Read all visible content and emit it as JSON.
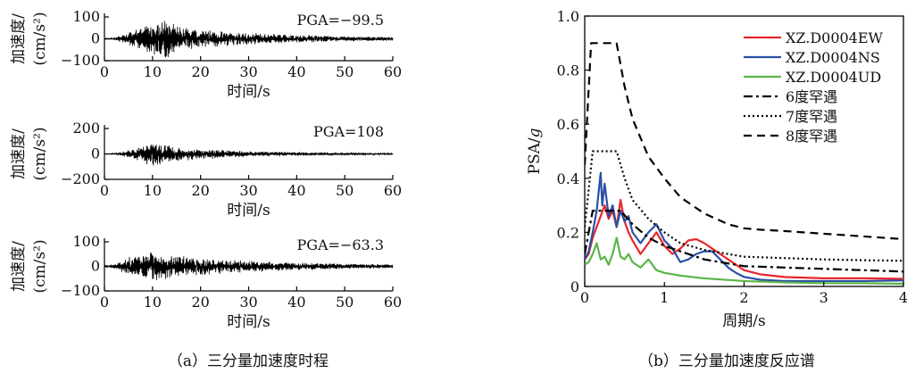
{
  "chart_data": [
    {
      "type": "line",
      "id": "ew",
      "title": "",
      "pga_label": "PGA=−99.5",
      "ylabel_line1": "加速度/",
      "ylabel_line2": "(cm/s²)",
      "xlabel": "时间/s",
      "xlim": [
        0,
        60
      ],
      "ylim": [
        -100,
        100
      ],
      "xticks": [
        0,
        10,
        20,
        30,
        40,
        50,
        60
      ],
      "yticks": [
        -100,
        0,
        100
      ],
      "ytick_labels": [
        "−100",
        "0",
        "100"
      ],
      "xtick_labels": [
        "0",
        "10",
        "20",
        "30",
        "40",
        "50",
        "60"
      ],
      "envelope": {
        "t": [
          0,
          2,
          5,
          8,
          10,
          12,
          13,
          15,
          20,
          25,
          30,
          40,
          50,
          60
        ],
        "amp": [
          2,
          5,
          30,
          60,
          70,
          85,
          99.5,
          60,
          45,
          35,
          28,
          18,
          12,
          8
        ]
      },
      "line_color": "#000000"
    },
    {
      "type": "line",
      "id": "ns",
      "title": "",
      "pga_label": "PGA=108",
      "ylabel_line1": "加速度/",
      "ylabel_line2": "(cm/s²)",
      "xlabel": "时间/s",
      "xlim": [
        0,
        60
      ],
      "ylim": [
        -200,
        200
      ],
      "xticks": [
        0,
        10,
        20,
        30,
        40,
        50,
        60
      ],
      "yticks": [
        -200,
        0,
        200
      ],
      "ytick_labels": [
        "−200",
        "0",
        "200"
      ],
      "xtick_labels": [
        "0",
        "10",
        "20",
        "30",
        "40",
        "50",
        "60"
      ],
      "envelope": {
        "t": [
          0,
          2,
          5,
          8,
          10,
          12,
          15,
          20,
          25,
          30,
          40,
          50,
          60
        ],
        "amp": [
          2,
          5,
          30,
          70,
          108,
          80,
          60,
          45,
          30,
          22,
          14,
          9,
          6
        ]
      },
      "line_color": "#000000"
    },
    {
      "type": "line",
      "id": "ud",
      "title": "",
      "pga_label": "PGA=−63.3",
      "ylabel_line1": "加速度/",
      "ylabel_line2": "(cm/s²)",
      "xlabel": "时间/s",
      "xlim": [
        0,
        60
      ],
      "ylim": [
        -100,
        100
      ],
      "xticks": [
        0,
        10,
        20,
        30,
        40,
        50,
        60
      ],
      "yticks": [
        -100,
        0,
        100
      ],
      "ytick_labels": [
        "−100",
        "0",
        "100"
      ],
      "xtick_labels": [
        "0",
        "10",
        "20",
        "30",
        "40",
        "50",
        "60"
      ],
      "envelope": {
        "t": [
          0,
          2,
          5,
          8,
          10,
          12,
          15,
          20,
          25,
          30,
          40,
          50,
          60
        ],
        "amp": [
          3,
          8,
          40,
          55,
          63.3,
          55,
          45,
          38,
          30,
          24,
          16,
          11,
          8
        ]
      },
      "line_color": "#000000"
    },
    {
      "type": "line",
      "id": "spectrum",
      "title": "",
      "xlabel": "周期/s",
      "ylabel_main": "PSA/",
      "ylabel_italic": "g",
      "xlim": [
        0,
        4
      ],
      "ylim": [
        0,
        1.0
      ],
      "xticks": [
        0,
        1,
        2,
        3,
        4
      ],
      "xtick_labels": [
        "0",
        "1",
        "2",
        "3",
        "4"
      ],
      "yticks": [
        0,
        0.2,
        0.4,
        0.6,
        0.8,
        1.0
      ],
      "ytick_labels": [
        "0",
        "0.2",
        "0.4",
        "0.6",
        "0.8",
        "1.0"
      ],
      "legend_position": "top-right",
      "series": [
        {
          "name": "XZ.D0004EW",
          "color": "#e8262b",
          "dash": "",
          "width": 2.2,
          "x": [
            0,
            0.05,
            0.1,
            0.15,
            0.2,
            0.25,
            0.3,
            0.35,
            0.4,
            0.45,
            0.5,
            0.55,
            0.6,
            0.7,
            0.8,
            0.9,
            1.0,
            1.1,
            1.2,
            1.3,
            1.4,
            1.5,
            1.6,
            1.7,
            1.8,
            1.9,
            2.0,
            2.2,
            2.5,
            3.0,
            3.5,
            4.0
          ],
          "y": [
            0.1,
            0.12,
            0.18,
            0.22,
            0.26,
            0.3,
            0.25,
            0.28,
            0.22,
            0.32,
            0.24,
            0.2,
            0.17,
            0.12,
            0.16,
            0.2,
            0.15,
            0.12,
            0.14,
            0.17,
            0.175,
            0.16,
            0.14,
            0.12,
            0.1,
            0.08,
            0.06,
            0.045,
            0.035,
            0.03,
            0.03,
            0.028
          ]
        },
        {
          "name": "XZ.D0004NS",
          "color": "#2a4fa6",
          "dash": "",
          "width": 2.2,
          "x": [
            0,
            0.05,
            0.1,
            0.15,
            0.2,
            0.22,
            0.25,
            0.3,
            0.35,
            0.4,
            0.45,
            0.5,
            0.55,
            0.6,
            0.7,
            0.8,
            0.9,
            1.0,
            1.1,
            1.2,
            1.3,
            1.4,
            1.5,
            1.6,
            1.7,
            1.8,
            1.9,
            2.0,
            2.2,
            2.5,
            3.0,
            3.5,
            4.0
          ],
          "y": [
            0.1,
            0.13,
            0.2,
            0.28,
            0.42,
            0.3,
            0.38,
            0.26,
            0.3,
            0.22,
            0.28,
            0.24,
            0.26,
            0.2,
            0.16,
            0.2,
            0.23,
            0.17,
            0.14,
            0.09,
            0.1,
            0.12,
            0.13,
            0.13,
            0.1,
            0.07,
            0.05,
            0.035,
            0.025,
            0.02,
            0.02,
            0.02,
            0.022
          ]
        },
        {
          "name": "XZ.D0004UD",
          "color": "#5bb547",
          "dash": "",
          "width": 2.2,
          "x": [
            0,
            0.05,
            0.1,
            0.15,
            0.2,
            0.25,
            0.3,
            0.35,
            0.4,
            0.45,
            0.5,
            0.55,
            0.6,
            0.7,
            0.8,
            0.9,
            1.0,
            1.2,
            1.5,
            2.0,
            2.5,
            3.0,
            3.5,
            4.0
          ],
          "y": [
            0.08,
            0.09,
            0.12,
            0.16,
            0.1,
            0.11,
            0.08,
            0.12,
            0.18,
            0.11,
            0.1,
            0.12,
            0.09,
            0.07,
            0.1,
            0.06,
            0.05,
            0.04,
            0.03,
            0.02,
            0.015,
            0.012,
            0.012,
            0.01
          ]
        },
        {
          "name": "6度罕遇",
          "color": "#000000",
          "dash": "10 4 3 4",
          "width": 2.2,
          "x": [
            0,
            0.1,
            0.45,
            0.6,
            0.8,
            1.0,
            1.2,
            1.5,
            2.0,
            2.5,
            3.0,
            3.5,
            4.0
          ],
          "y": [
            0.12,
            0.28,
            0.28,
            0.23,
            0.18,
            0.15,
            0.13,
            0.1,
            0.075,
            0.07,
            0.065,
            0.06,
            0.055
          ]
        },
        {
          "name": "7度罕遇",
          "color": "#000000",
          "dash": "2 3",
          "width": 2.2,
          "x": [
            0,
            0.1,
            0.4,
            0.5,
            0.6,
            0.8,
            1.0,
            1.2,
            1.5,
            1.8,
            2.0,
            2.5,
            3.0,
            3.5,
            4.0
          ],
          "y": [
            0.22,
            0.5,
            0.5,
            0.4,
            0.32,
            0.25,
            0.2,
            0.16,
            0.135,
            0.12,
            0.11,
            0.105,
            0.1,
            0.097,
            0.095
          ]
        },
        {
          "name": "8度罕遇",
          "color": "#000000",
          "dash": "9 6",
          "width": 2.2,
          "x": [
            0,
            0.08,
            0.4,
            0.5,
            0.6,
            0.8,
            1.0,
            1.2,
            1.5,
            1.8,
            2.0,
            2.2,
            2.5,
            3.0,
            3.5,
            4.0
          ],
          "y": [
            0.45,
            0.9,
            0.9,
            0.74,
            0.62,
            0.48,
            0.4,
            0.33,
            0.27,
            0.23,
            0.215,
            0.21,
            0.205,
            0.195,
            0.185,
            0.175
          ]
        }
      ]
    }
  ],
  "captions": {
    "a": "（a）三分量加速度时程",
    "b": "（b）三分量加速度反应谱"
  }
}
